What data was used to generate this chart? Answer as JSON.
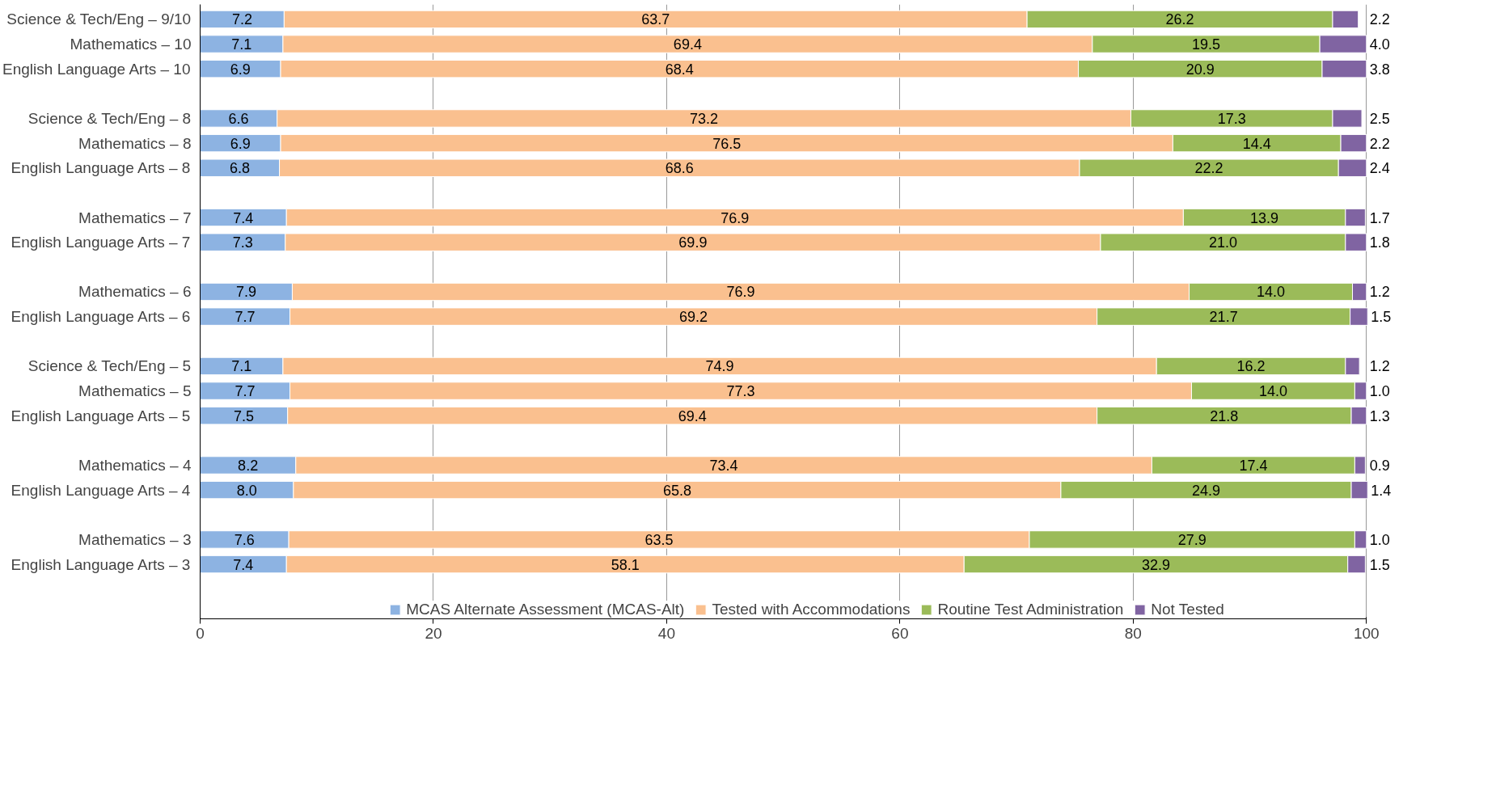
{
  "chart_data": {
    "type": "bar",
    "orientation": "horizontal",
    "stacked": true,
    "grid": "x",
    "legend": "bottom",
    "xlim": [
      0,
      100
    ],
    "xticks": [
      0,
      20,
      40,
      60,
      80,
      100
    ],
    "categories": [
      "Science & Tech/Eng – 9/10",
      "Mathematics – 10",
      "English Language Arts – 10",
      null,
      "Science & Tech/Eng – 8",
      "Mathematics – 8",
      "English Language Arts – 8",
      null,
      "Mathematics – 7",
      "English Language Arts – 7",
      null,
      "Mathematics – 6",
      "English Language Arts – 6",
      null,
      "Science & Tech/Eng – 5",
      "Mathematics – 5",
      "English Language Arts – 5",
      null,
      "Mathematics – 4",
      "English Language Arts – 4",
      null,
      "Mathematics – 3",
      "English Language Arts – 3"
    ],
    "series": [
      {
        "name": "MCAS Alternate Assessment (MCAS-Alt)",
        "color": "#8db3e2",
        "values": [
          7.2,
          7.1,
          6.9,
          null,
          6.6,
          6.9,
          6.8,
          null,
          7.4,
          7.3,
          null,
          7.9,
          7.7,
          null,
          7.1,
          7.7,
          7.5,
          null,
          8.2,
          8.0,
          null,
          7.6,
          7.4
        ],
        "value_labels": [
          "7.2",
          "7.1",
          "6.9",
          null,
          "6.6",
          "6.9",
          "6.8",
          null,
          "7.4",
          "7.3",
          null,
          "7.9",
          "7.7",
          null,
          "7.1",
          "7.7",
          "7.5",
          null,
          "8.2",
          "8.0",
          null,
          "7.6",
          "7.4"
        ]
      },
      {
        "name": "Tested with Accommodations",
        "color": "#fac08f",
        "values": [
          63.7,
          69.4,
          68.4,
          null,
          73.2,
          76.5,
          68.6,
          null,
          76.9,
          69.9,
          null,
          76.9,
          69.2,
          null,
          74.9,
          77.3,
          69.4,
          null,
          73.4,
          65.8,
          null,
          63.5,
          58.1
        ],
        "value_labels": [
          "63.7",
          "69.4",
          "68.4",
          null,
          "73.2",
          "76.5",
          "68.6",
          null,
          "76.9",
          "69.9",
          null,
          "76.9",
          "69.2",
          null,
          "74.9",
          "77.3",
          "69.4",
          null,
          "73.4",
          "65.8",
          null,
          "63.5",
          "58.1"
        ]
      },
      {
        "name": "Routine Test Administration",
        "color": "#9bbb59",
        "values": [
          26.2,
          19.5,
          20.9,
          null,
          17.3,
          14.4,
          22.2,
          null,
          13.9,
          21.0,
          null,
          14.0,
          21.7,
          null,
          16.2,
          14.0,
          21.8,
          null,
          17.4,
          24.9,
          null,
          27.9,
          32.9
        ],
        "value_labels": [
          "26.2",
          "19.5",
          "20.9",
          null,
          "17.3",
          "14.4",
          "22.2",
          null,
          "13.9",
          "21.0",
          null,
          "14.0",
          "21.7",
          null,
          "16.2",
          "14.0",
          "21.8",
          null,
          "17.4",
          "24.9",
          null,
          "27.9",
          "32.9"
        ]
      },
      {
        "name": "Not Tested",
        "color": "#8064a2",
        "values": [
          2.2,
          4.0,
          3.8,
          null,
          2.5,
          2.2,
          2.4,
          null,
          1.7,
          1.8,
          null,
          1.2,
          1.5,
          null,
          1.2,
          1.0,
          1.3,
          null,
          0.9,
          1.4,
          null,
          1.0,
          1.5
        ],
        "value_labels": [
          "2.2",
          "4.0",
          "3.8",
          null,
          "2.5",
          "2.2",
          "2.4",
          null,
          "1.7",
          "1.8",
          null,
          "1.2",
          "1.5",
          null,
          "1.2",
          "1.0",
          "1.3",
          null,
          "0.9",
          "1.4",
          null,
          "1.0",
          "1.5"
        ]
      }
    ]
  }
}
